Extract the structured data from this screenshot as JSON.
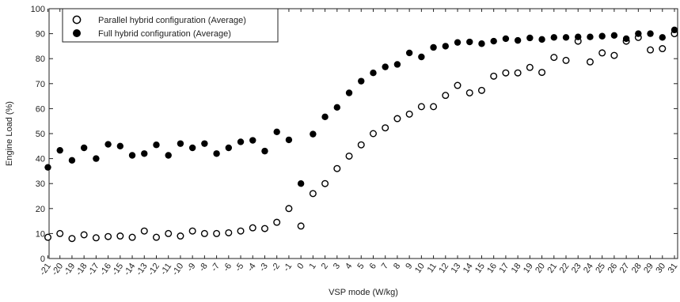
{
  "chart_data": {
    "type": "scatter",
    "xlabel": "VSP mode (W/kg)",
    "ylabel": "Engine Load (%)",
    "ylim": [
      0,
      100
    ],
    "yticks": [
      0,
      10,
      20,
      30,
      40,
      50,
      60,
      70,
      80,
      90,
      100
    ],
    "categories": [
      "-21",
      "-20",
      "-19",
      "-18",
      "-17",
      "-16",
      "-15",
      "-14",
      "-13",
      "-12",
      "-11",
      "-10",
      "-9",
      "-8",
      "-7",
      "-6",
      "-5",
      "-4",
      "-3",
      "-2",
      "-1",
      "0",
      "1",
      "2",
      "3",
      "4",
      "5",
      "6",
      "7",
      "8",
      "9",
      "10",
      "11",
      "12",
      "13",
      "14",
      "15",
      "16",
      "17",
      "18",
      "19",
      "20",
      "21",
      "22",
      "23",
      "24",
      "25",
      "26",
      "27",
      "28",
      "29",
      "30",
      "31"
    ],
    "legend_position": "top-left",
    "grid": false,
    "series": [
      {
        "name": "Parallel hybrid configuration (Average)",
        "marker": "open-circle",
        "values": [
          8.5,
          10,
          8,
          9.5,
          8.3,
          8.8,
          9,
          8.5,
          11,
          8.5,
          10,
          9,
          11,
          10,
          10,
          10.3,
          11,
          12.3,
          12,
          14.5,
          20,
          13,
          26,
          30,
          36,
          41,
          45.5,
          50,
          52.3,
          56,
          57.8,
          60.8,
          60.8,
          65.3,
          69.3,
          66.3,
          67.3,
          73,
          74.3,
          74.3,
          76.5,
          74.5,
          80.5,
          79.3,
          87,
          78.7,
          82.3,
          81.3,
          87,
          88.5,
          83.5,
          84,
          90
        ]
      },
      {
        "name": "Full hybrid configuration (Average)",
        "marker": "filled-circle",
        "values": [
          36.5,
          43.3,
          39.3,
          44.3,
          40,
          45.7,
          45,
          41.3,
          42,
          45.5,
          41.3,
          46,
          44.3,
          46,
          42,
          44.3,
          46.7,
          47.3,
          43,
          50.7,
          47.5,
          30,
          49.8,
          56.7,
          60.5,
          66.3,
          71,
          74.3,
          76.7,
          77.7,
          82.3,
          80.7,
          84.5,
          85,
          86.5,
          86.7,
          86,
          87,
          88,
          87.3,
          88.3,
          87.7,
          88.5,
          88.5,
          88.7,
          88.7,
          89,
          89.3,
          88,
          90,
          90,
          88.5,
          91.5
        ]
      }
    ]
  }
}
